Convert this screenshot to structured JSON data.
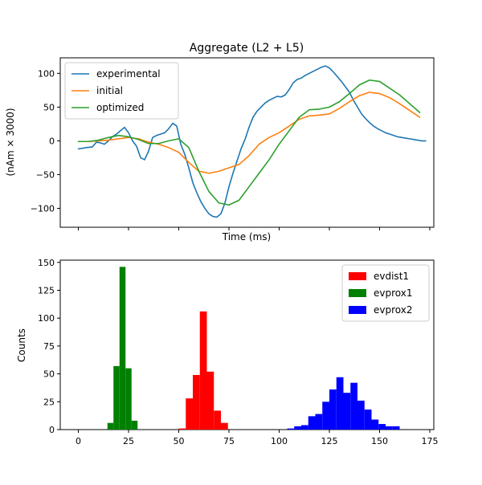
{
  "chart_data": [
    {
      "type": "line",
      "title": "Aggregate (L2 + L5)",
      "xlabel": "Time (ms)",
      "ylabel": "(nAm × 3000)",
      "xlim": [
        -9,
        177
      ],
      "ylim": [
        -128,
        123
      ],
      "xticks": [
        0,
        25,
        50,
        75,
        100,
        125,
        150,
        175
      ],
      "xtick_labels_visible": false,
      "yticks": [
        -100,
        -50,
        0,
        50,
        100
      ],
      "ytick_labels": [
        "−100",
        "−50",
        "0",
        "50",
        "100"
      ],
      "grid": false,
      "legend_position": "top-left",
      "series": [
        {
          "name": "experimental",
          "color": "#1f77b4",
          "x": [
            0,
            4,
            7,
            9,
            11,
            13,
            15,
            17,
            19,
            21,
            23,
            25,
            27,
            29,
            31,
            33,
            35,
            37,
            39,
            41,
            43,
            45,
            47,
            49,
            51,
            53,
            55,
            57,
            59,
            61,
            63,
            65,
            67,
            69,
            71,
            73,
            75,
            77,
            79,
            81,
            83,
            85,
            87,
            89,
            91,
            93,
            95,
            97,
            99,
            101,
            103,
            105,
            107,
            109,
            111,
            113,
            115,
            117,
            119,
            121,
            123,
            125,
            127,
            129,
            131,
            133,
            135,
            137,
            139,
            141,
            143,
            145,
            147,
            149,
            151,
            153,
            155,
            157,
            159,
            161,
            163,
            165,
            167,
            169,
            171,
            173
          ],
          "y": [
            -12,
            -10,
            -9,
            -2,
            -3,
            -5,
            0,
            6,
            10,
            15,
            20,
            12,
            0,
            -8,
            -25,
            -28,
            -15,
            5,
            8,
            10,
            12,
            18,
            26,
            22,
            -5,
            -20,
            -40,
            -62,
            -77,
            -90,
            -100,
            -108,
            -112,
            -113,
            -108,
            -92,
            -68,
            -48,
            -30,
            -12,
            2,
            20,
            35,
            44,
            50,
            56,
            60,
            63,
            66,
            65,
            68,
            76,
            86,
            91,
            93,
            97,
            100,
            103,
            106,
            109,
            111,
            108,
            102,
            95,
            88,
            80,
            72,
            60,
            50,
            40,
            33,
            27,
            22,
            18,
            15,
            12,
            10,
            8,
            6,
            5,
            4,
            3,
            2,
            1,
            0,
            0
          ]
        },
        {
          "name": "initial",
          "color": "#ff7f0e",
          "x": [
            0,
            5,
            10,
            15,
            20,
            25,
            30,
            35,
            40,
            45,
            50,
            55,
            60,
            65,
            70,
            75,
            80,
            85,
            90,
            95,
            100,
            105,
            110,
            115,
            120,
            125,
            130,
            135,
            140,
            145,
            150,
            155,
            160,
            165,
            170,
            175
          ],
          "y": [
            -1,
            -1,
            0,
            1,
            3,
            5,
            3,
            -2,
            -5,
            -10,
            -17,
            -32,
            -45,
            -48,
            -45,
            -40,
            -35,
            -22,
            -5,
            5,
            12,
            22,
            32,
            37,
            38,
            40,
            48,
            58,
            67,
            72,
            70,
            64,
            55,
            45,
            35,
            22
          ],
          "note_visible_range": "series shown from 0 to 173"
        },
        {
          "name": "optimized",
          "color": "#2ca02c",
          "x": [
            0,
            5,
            10,
            15,
            20,
            25,
            30,
            35,
            40,
            45,
            50,
            55,
            60,
            65,
            70,
            75,
            80,
            85,
            90,
            95,
            100,
            105,
            110,
            115,
            120,
            125,
            130,
            135,
            140,
            145,
            150,
            155,
            160,
            165,
            170,
            175
          ],
          "y": [
            -1,
            -1,
            1,
            5,
            8,
            6,
            2,
            -4,
            -4,
            0,
            3,
            -10,
            -45,
            -75,
            -92,
            -95,
            -88,
            -68,
            -48,
            -28,
            -5,
            15,
            35,
            46,
            47,
            50,
            58,
            70,
            83,
            90,
            88,
            78,
            68,
            55,
            42,
            30
          ]
        }
      ]
    },
    {
      "type": "bar",
      "title": "",
      "xlabel": "",
      "ylabel": "Counts",
      "xlim": [
        -9,
        177
      ],
      "ylim": [
        0,
        152
      ],
      "xticks": [
        0,
        25,
        50,
        75,
        100,
        125,
        150,
        175
      ],
      "xtick_labels": [
        "0",
        "25",
        "50",
        "75",
        "100",
        "125",
        "150",
        "175"
      ],
      "yticks": [
        0,
        25,
        50,
        75,
        100,
        125,
        150
      ],
      "ytick_labels": [
        "0",
        "25",
        "50",
        "75",
        "100",
        "125",
        "150"
      ],
      "grid": false,
      "legend_position": "top-right",
      "histogram": true,
      "series": [
        {
          "name": "evdist1",
          "color": "#ff0000",
          "bins": [
            [
              50,
              53.5,
              1
            ],
            [
              53.5,
              57,
              28
            ],
            [
              57,
              60.5,
              49
            ],
            [
              60.5,
              64,
              106
            ],
            [
              64,
              67.5,
              52
            ],
            [
              67.5,
              71,
              17
            ],
            [
              71,
              74.5,
              6
            ]
          ]
        },
        {
          "name": "evproxo1",
          "display_name": "evprox1",
          "color": "#008000",
          "bins": [
            [
              14.5,
              17.5,
              6
            ],
            [
              17.5,
              20.5,
              57
            ],
            [
              20.5,
              23.5,
              146
            ],
            [
              23.5,
              26.5,
              55
            ],
            [
              26.5,
              29.5,
              8
            ]
          ]
        },
        {
          "name": "evprox2",
          "color": "#0000ff",
          "bins": [
            [
              104,
              107.5,
              1
            ],
            [
              107.5,
              111,
              3
            ],
            [
              111,
              114.5,
              4
            ],
            [
              114.5,
              118,
              12
            ],
            [
              118,
              121.5,
              14
            ],
            [
              121.5,
              125,
              25
            ],
            [
              125,
              128.5,
              36
            ],
            [
              128.5,
              132,
              47
            ],
            [
              132,
              135.5,
              33
            ],
            [
              135.5,
              139,
              42
            ],
            [
              139,
              142.5,
              26
            ],
            [
              142.5,
              146,
              18
            ],
            [
              146,
              149.5,
              9
            ],
            [
              149.5,
              153,
              5
            ],
            [
              153,
              156.5,
              3
            ],
            [
              156.5,
              160,
              3
            ]
          ]
        }
      ]
    }
  ]
}
